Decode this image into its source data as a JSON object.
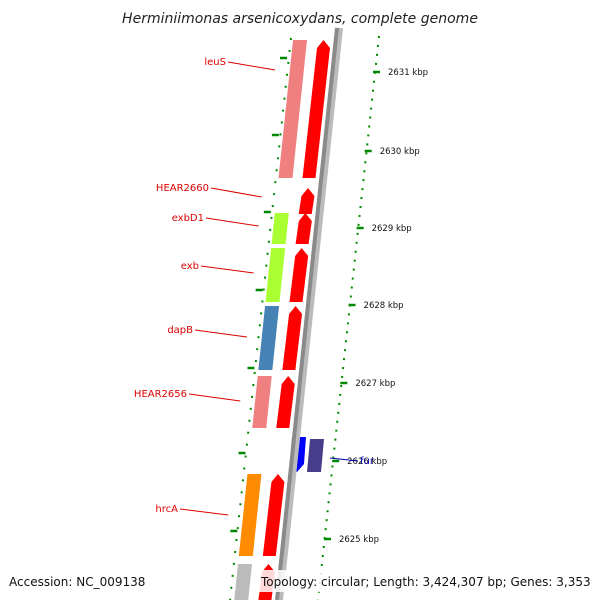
{
  "title": "Herminiimonas arsenicoxydans, complete genome",
  "accession": "Accession: NC_009138",
  "topology": "Topology: circular; Length: 3,424,307 bp; Genes: 3,353",
  "colors": {
    "label_red": "#dd0000",
    "label_blue": "#0000aa",
    "tick_green": "#008800",
    "backbone": "#8a8a8a"
  },
  "scale_ticks": [
    {
      "label": "2631 kbp"
    },
    {
      "label": "2630 kbp"
    },
    {
      "label": "2629 kbp"
    },
    {
      "label": "2628 kbp"
    },
    {
      "label": "2627 kbp"
    },
    {
      "label": "2626 kbp"
    },
    {
      "label": "2625 kbp"
    }
  ],
  "genes": [
    {
      "label": "leuS",
      "side": "left",
      "color": "#f08080",
      "partner_color": "#ff0000"
    },
    {
      "label": "HEAR2660",
      "side": "left",
      "color": null,
      "partner_color": "#ff0000"
    },
    {
      "label": "exbD1",
      "side": "left",
      "color": "#aaff33",
      "partner_color": "#ff0000"
    },
    {
      "label": "exb",
      "side": "left",
      "color": "#aaff33",
      "partner_color": "#ff0000"
    },
    {
      "label": "dapB",
      "side": "left",
      "color": "#4682b4",
      "partner_color": "#ff0000"
    },
    {
      "label": "HEAR2656",
      "side": "left",
      "color": "#f08080",
      "partner_color": "#ff0000"
    },
    {
      "label": "fur",
      "side": "right",
      "color": "#0000ff",
      "partner_color": "#483d8b"
    },
    {
      "label": "hrcA",
      "side": "left",
      "color": "#ff8c00",
      "partner_color": "#ff0000"
    },
    {
      "label": "",
      "side": "left",
      "color": "#bbbbbb",
      "partner_color": "#ff0000"
    }
  ]
}
